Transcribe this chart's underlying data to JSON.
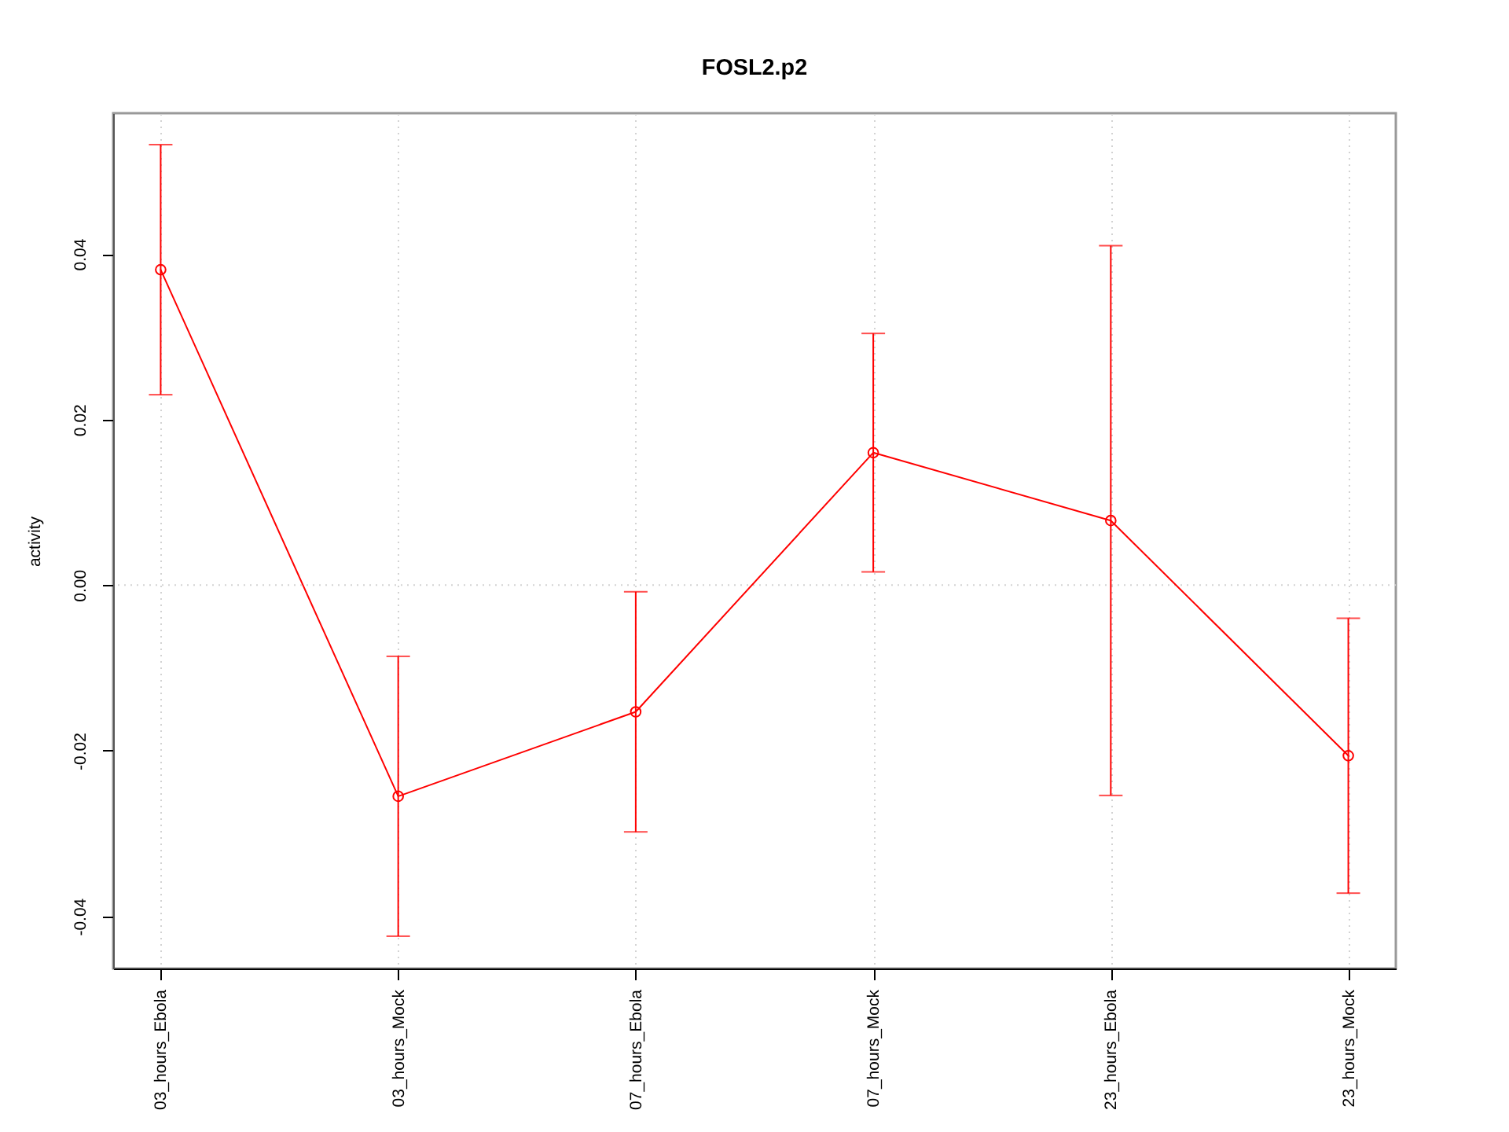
{
  "chart_data": {
    "type": "line",
    "title": "FOSL2.p2",
    "ylabel": "activity",
    "categories": [
      "03_hours_Ebola",
      "03_hours_Mock",
      "07_hours_Ebola",
      "07_hours_Mock",
      "23_hours_Ebola",
      "23_hours_Mock"
    ],
    "series": [
      {
        "color": "#ff0000",
        "values": [
          0.0381,
          -0.0255,
          -0.0153,
          0.016,
          0.0078,
          -0.0206
        ],
        "errors": [
          0.0151,
          0.0169,
          0.0145,
          0.0144,
          0.0332,
          0.0166
        ]
      }
    ],
    "ylim": [
      -0.0463,
      0.057
    ],
    "yticks": [
      -0.04,
      -0.02,
      {
        "value": 0,
        "label": "0.00"
      },
      0.02,
      0.04
    ],
    "grid": "x",
    "ref_lines": [
      {
        "axis": "y",
        "value": 0,
        "color": "#d3d3d3",
        "line_style": "dotted"
      }
    ],
    "marker": "circle",
    "line_style": "solid"
  }
}
